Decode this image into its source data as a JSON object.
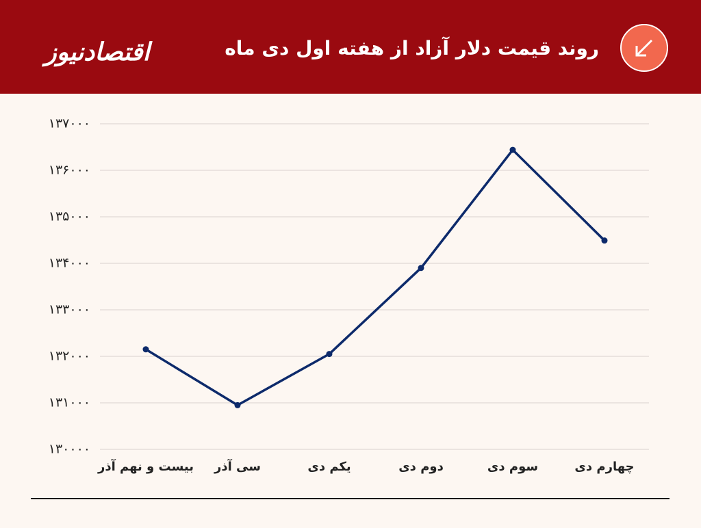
{
  "header": {
    "logo": "اقتصادنیوز"
  },
  "chart_data": {
    "type": "line",
    "title": "روند قیمت دلار آزاد از هفته اول دی ماه",
    "categories": [
      "بیست و نهم آذر",
      "سی آذر",
      "یکم دی",
      "دوم دی",
      "سوم دی",
      "چهارم دی"
    ],
    "series": [
      {
        "name": "قیمت دلار",
        "color": "#0d2a6b",
        "values": [
          132150,
          130950,
          132050,
          133900,
          136440,
          134490
        ]
      }
    ],
    "ylim": [
      130000,
      137000
    ],
    "yticks": [
      {
        "value": 130000,
        "label": "۱۳۰۰۰۰"
      },
      {
        "value": 131000,
        "label": "۱۳۱۰۰۰"
      },
      {
        "value": 132000,
        "label": "۱۳۲۰۰۰"
      },
      {
        "value": 133000,
        "label": "۱۳۳۰۰۰"
      },
      {
        "value": 134000,
        "label": "۱۳۴۰۰۰"
      },
      {
        "value": 135000,
        "label": "۱۳۵۰۰۰"
      },
      {
        "value": 136000,
        "label": "۱۳۶۰۰۰"
      },
      {
        "value": 137000,
        "label": "۱۳۷۰۰۰"
      }
    ],
    "grid": true
  }
}
